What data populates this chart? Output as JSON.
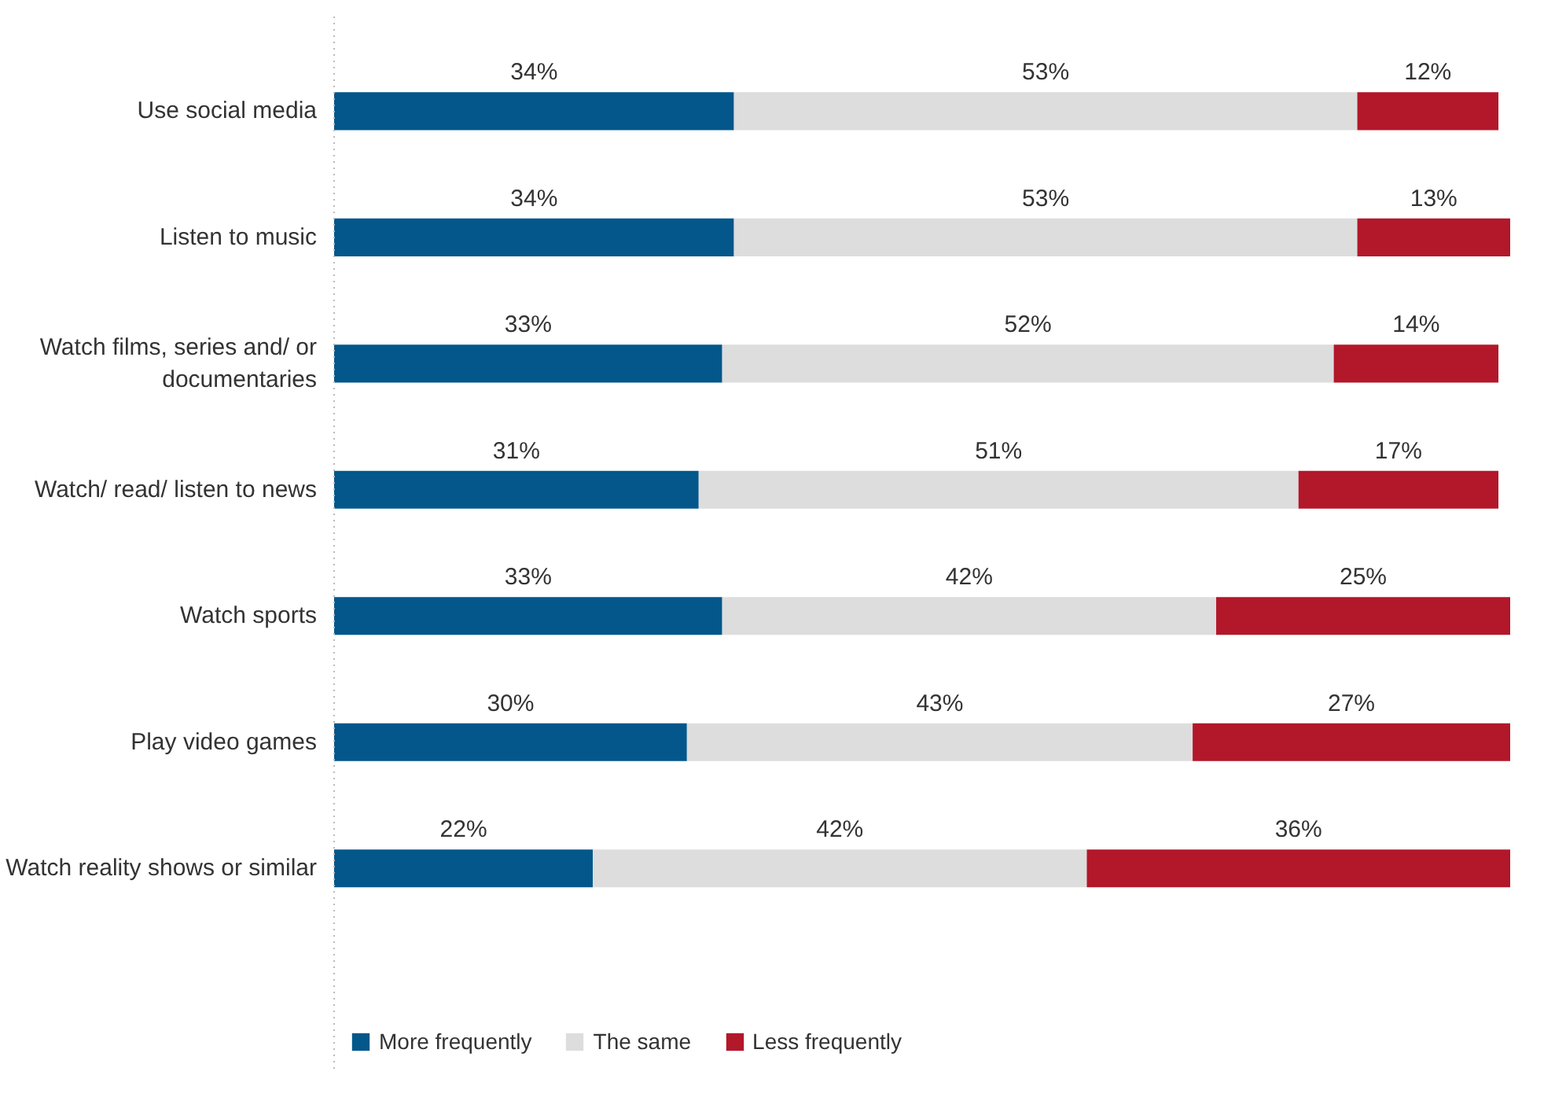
{
  "chart_data": {
    "type": "bar",
    "orientation": "horizontal",
    "stacked": true,
    "tick_labels": "y",
    "grid": false,
    "legend": "bottom left",
    "categories": [
      "Use social media",
      "Listen to music",
      "Watch films, series and/ or documentaries",
      "Watch/ read/ listen to news",
      "Watch sports",
      "Play video games",
      "Watch reality shows or similar"
    ],
    "series": [
      {
        "name": "More frequently",
        "color": "#03578b",
        "values": [
          34,
          34,
          33,
          31,
          33,
          30,
          22
        ],
        "value_labels": [
          "34%",
          "34%",
          "33%",
          "31%",
          "33%",
          "30%",
          "22%"
        ]
      },
      {
        "name": "The same",
        "color": "#dddddd",
        "values": [
          53,
          53,
          52,
          51,
          42,
          43,
          42
        ],
        "value_labels": [
          "53%",
          "53%",
          "52%",
          "51%",
          "42%",
          "43%",
          "42%"
        ]
      },
      {
        "name": "Less frequently",
        "color": "#b3172a",
        "values": [
          12,
          13,
          14,
          17,
          25,
          27,
          36
        ],
        "value_labels": [
          "12%",
          "13%",
          "14%",
          "17%",
          "25%",
          "27%",
          "36%"
        ]
      }
    ]
  }
}
